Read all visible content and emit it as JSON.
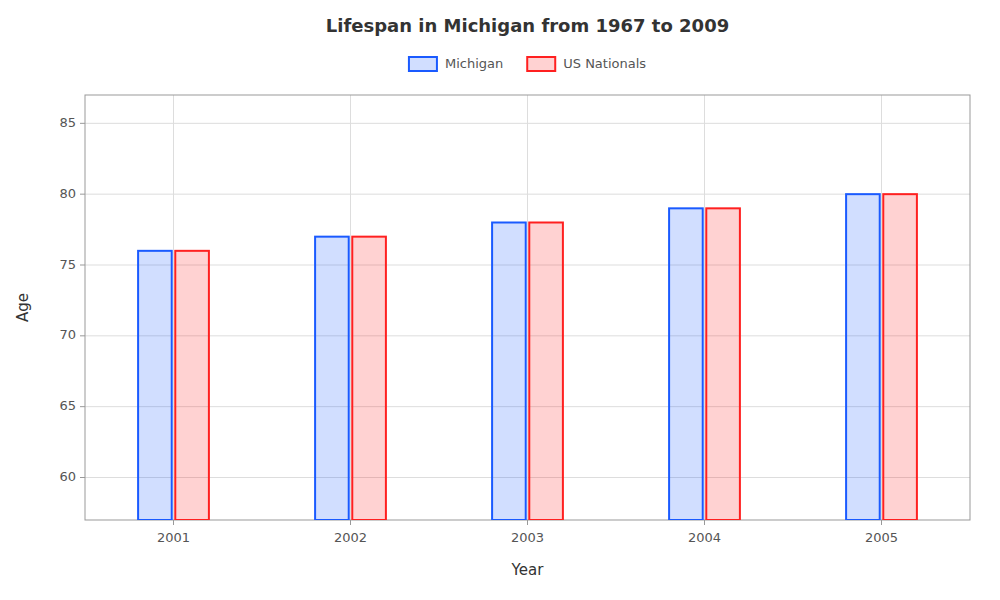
{
  "chart_data": {
    "type": "bar",
    "title": "Lifespan in Michigan from 1967 to 2009",
    "xlabel": "Year",
    "ylabel": "Age",
    "categories": [
      "2001",
      "2002",
      "2003",
      "2004",
      "2005"
    ],
    "series": [
      {
        "name": "Michigan",
        "color": "#1a5aff",
        "values": [
          76,
          77,
          78,
          79,
          80
        ]
      },
      {
        "name": "US Nationals",
        "color": "#ff2020",
        "values": [
          76,
          77,
          78,
          79,
          80
        ]
      }
    ],
    "ylim": [
      57,
      87
    ],
    "yticks": [
      60,
      65,
      70,
      75,
      80,
      85
    ],
    "grid": true,
    "legend": "top"
  }
}
